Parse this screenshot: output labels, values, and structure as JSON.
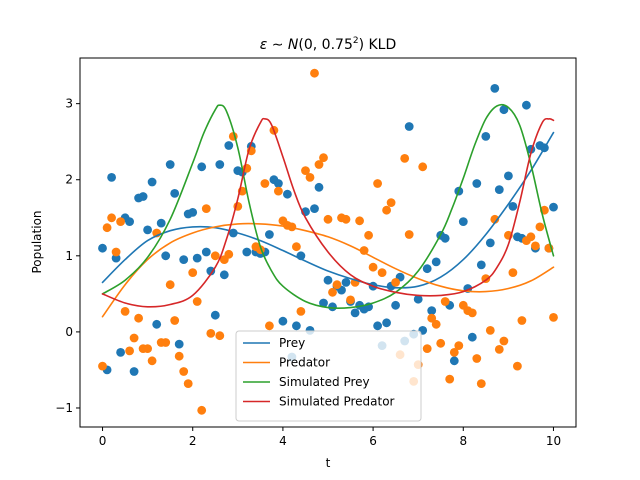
{
  "chart_data": {
    "type": "scatter",
    "title_parts": {
      "lead": "ε ∼ ",
      "func": "N",
      "args": "(0, 0.75",
      "sup": "2",
      "tail": ") KLD"
    },
    "xlabel": "t",
    "ylabel": "Population",
    "xlim": [
      -0.5,
      10.5
    ],
    "ylim": [
      -1.25,
      3.6
    ],
    "xticks": [
      0,
      2,
      4,
      6,
      8,
      10
    ],
    "yticks": [
      -1,
      0,
      1,
      2,
      3
    ],
    "legend_position": "lower center",
    "colors": {
      "prey": "#1f77b4",
      "predator": "#ff7f0e",
      "sim_prey": "#2ca02c",
      "sim_predator": "#d62728"
    },
    "series": [
      {
        "name": "Prey",
        "kind": "line",
        "color": "#1f77b4",
        "x": [
          0,
          0.5,
          1,
          1.5,
          2,
          2.5,
          3,
          3.5,
          4,
          4.5,
          5,
          5.5,
          6,
          6.5,
          7,
          7.5,
          8,
          8.5,
          9,
          9.5,
          10
        ],
        "y": [
          0.65,
          0.95,
          1.2,
          1.33,
          1.38,
          1.37,
          1.3,
          1.2,
          1.07,
          0.93,
          0.8,
          0.7,
          0.62,
          0.58,
          0.6,
          0.72,
          0.95,
          1.28,
          1.68,
          2.12,
          2.62
        ]
      },
      {
        "name": "Predator",
        "kind": "line",
        "color": "#ff7f0e",
        "x": [
          0,
          0.5,
          1,
          1.5,
          2,
          2.5,
          3,
          3.5,
          4,
          4.5,
          5,
          5.5,
          6,
          6.5,
          7,
          7.5,
          8,
          8.5,
          9,
          9.5,
          10
        ],
        "y": [
          0.2,
          0.62,
          0.95,
          1.17,
          1.3,
          1.38,
          1.42,
          1.42,
          1.39,
          1.33,
          1.25,
          1.13,
          0.98,
          0.83,
          0.7,
          0.6,
          0.54,
          0.53,
          0.57,
          0.67,
          0.85
        ]
      },
      {
        "name": "Simulated Prey",
        "kind": "line",
        "color": "#2ca02c",
        "x": [
          0,
          0.5,
          1,
          1.5,
          2,
          2.25,
          2.5,
          2.6,
          2.75,
          3,
          3.25,
          3.5,
          3.75,
          4,
          4.5,
          5,
          5.5,
          6,
          6.5,
          7,
          7.5,
          7.75,
          8,
          8.25,
          8.5,
          8.75,
          9,
          9.25,
          9.5,
          9.75,
          10
        ],
        "y": [
          0.5,
          0.68,
          0.98,
          1.48,
          2.22,
          2.62,
          2.92,
          2.98,
          2.9,
          2.42,
          1.7,
          1.12,
          0.8,
          0.6,
          0.4,
          0.32,
          0.32,
          0.38,
          0.52,
          0.8,
          1.28,
          1.62,
          2.02,
          2.45,
          2.8,
          2.97,
          2.95,
          2.72,
          2.2,
          1.55,
          1.0
        ]
      },
      {
        "name": "Simulated Predator",
        "kind": "line",
        "color": "#d62728",
        "x": [
          0,
          0.5,
          1,
          1.5,
          2,
          2.5,
          2.75,
          3,
          3.25,
          3.5,
          3.6,
          3.75,
          4,
          4.25,
          4.5,
          5,
          5.5,
          6,
          6.5,
          7,
          7.5,
          8,
          8.5,
          8.75,
          9,
          9.25,
          9.5,
          9.75,
          9.9,
          10
        ],
        "y": [
          0.5,
          0.38,
          0.33,
          0.36,
          0.48,
          0.85,
          1.22,
          1.75,
          2.4,
          2.75,
          2.8,
          2.72,
          2.3,
          1.85,
          1.5,
          1.05,
          0.75,
          0.6,
          0.52,
          0.48,
          0.48,
          0.53,
          0.68,
          0.85,
          1.15,
          1.7,
          2.35,
          2.75,
          2.8,
          2.78
        ]
      },
      {
        "name": "Prey",
        "kind": "points",
        "color": "#1f77b4",
        "x": [
          0,
          0.1,
          0.2,
          0.3,
          0.4,
          0.5,
          0.6,
          0.7,
          0.8,
          0.9,
          1,
          1.1,
          1.2,
          1.3,
          1.4,
          1.5,
          1.6,
          1.7,
          1.8,
          1.9,
          2,
          2.1,
          2.2,
          2.3,
          2.4,
          2.5,
          2.6,
          2.7,
          2.8,
          2.9,
          3,
          3.1,
          3.2,
          3.3,
          3.4,
          3.5,
          3.6,
          3.7,
          3.8,
          3.9,
          4,
          4.1,
          4.2,
          4.3,
          4.4,
          4.5,
          4.6,
          4.7,
          4.8,
          4.9,
          5,
          5.1,
          5.2,
          5.3,
          5.4,
          5.5,
          5.6,
          5.7,
          5.8,
          5.9,
          6,
          6.1,
          6.2,
          6.3,
          6.4,
          6.5,
          6.6,
          6.7,
          6.8,
          6.9,
          7,
          7.1,
          7.2,
          7.3,
          7.4,
          7.5,
          7.6,
          7.7,
          7.8,
          7.9,
          8,
          8.1,
          8.2,
          8.3,
          8.4,
          8.5,
          8.6,
          8.7,
          8.8,
          8.9,
          9,
          9.1,
          9.2,
          9.3,
          9.4,
          9.5,
          9.6,
          9.7,
          9.8,
          9.9,
          10
        ],
        "y": [
          1.1,
          -0.5,
          2.03,
          0.97,
          -0.27,
          1.5,
          1.45,
          -0.52,
          1.76,
          1.78,
          1.34,
          1.97,
          0.1,
          1.43,
          1.0,
          2.2,
          1.82,
          -0.16,
          0.95,
          1.55,
          1.57,
          0.97,
          2.17,
          1.05,
          0.8,
          0.22,
          2.2,
          0.75,
          2.45,
          1.3,
          2.12,
          2.1,
          1.05,
          2.44,
          1.05,
          1.03,
          1.05,
          1.28,
          2.0,
          1.95,
          0.14,
          1.81,
          -0.33,
          0.08,
          1.0,
          1.58,
          0.02,
          1.62,
          1.9,
          0.38,
          0.68,
          0.33,
          0.6,
          0.55,
          0.65,
          0.4,
          0.25,
          0.35,
          0.3,
          0.33,
          0.6,
          0.08,
          -0.18,
          0.12,
          0.6,
          0.35,
          0.72,
          -0.12,
          2.7,
          -0.03,
          0.43,
          0.02,
          0.83,
          0.28,
          0.92,
          1.27,
          1.23,
          0.35,
          -0.38,
          1.85,
          1.45,
          0.57,
          -0.07,
          1.95,
          0.88,
          2.57,
          1.17,
          3.2,
          1.87,
          2.92,
          2.05,
          1.65,
          1.25,
          1.23,
          2.98,
          2.4,
          1.1,
          2.45,
          2.42,
          1.1,
          1.64
        ]
      },
      {
        "name": "Predator",
        "kind": "points",
        "color": "#ff7f0e",
        "x": [
          0,
          0.1,
          0.2,
          0.3,
          0.4,
          0.5,
          0.6,
          0.7,
          0.8,
          0.9,
          1,
          1.1,
          1.2,
          1.3,
          1.4,
          1.5,
          1.6,
          1.7,
          1.8,
          1.9,
          2,
          2.1,
          2.2,
          2.3,
          2.4,
          2.5,
          2.6,
          2.7,
          2.8,
          2.9,
          3,
          3.1,
          3.2,
          3.3,
          3.4,
          3.5,
          3.6,
          3.7,
          3.8,
          3.9,
          4,
          4.1,
          4.2,
          4.3,
          4.4,
          4.5,
          4.6,
          4.7,
          4.8,
          4.9,
          5,
          5.1,
          5.2,
          5.3,
          5.4,
          5.5,
          5.6,
          5.7,
          5.8,
          5.9,
          6,
          6.1,
          6.2,
          6.3,
          6.4,
          6.5,
          6.6,
          6.7,
          6.8,
          6.9,
          7,
          7.1,
          7.2,
          7.3,
          7.4,
          7.5,
          7.6,
          7.7,
          7.8,
          7.9,
          8,
          8.1,
          8.2,
          8.3,
          8.4,
          8.5,
          8.6,
          8.7,
          8.8,
          8.9,
          9,
          9.1,
          9.2,
          9.3,
          9.4,
          9.5,
          9.6,
          9.7,
          9.8,
          9.9,
          10
        ],
        "y": [
          -0.45,
          1.37,
          1.5,
          1.05,
          1.45,
          0.27,
          -0.25,
          -0.08,
          0.18,
          -0.22,
          -0.22,
          -0.38,
          1.3,
          -0.14,
          -0.14,
          0.62,
          0.15,
          -0.32,
          -0.52,
          -0.68,
          0.78,
          0.4,
          -1.03,
          1.62,
          -0.02,
          1.0,
          -0.05,
          0.95,
          1.02,
          2.57,
          1.65,
          1.85,
          2.15,
          2.38,
          1.12,
          1.08,
          1.95,
          0.08,
          2.65,
          1.85,
          1.46,
          1.4,
          1.38,
          1.12,
          0.27,
          2.12,
          2.03,
          3.4,
          2.2,
          2.29,
          1.48,
          0.52,
          0.62,
          1.5,
          1.48,
          0.42,
          0.65,
          1.46,
          1.07,
          1.27,
          0.85,
          1.95,
          0.78,
          1.6,
          1.7,
          0.65,
          -0.3,
          2.28,
          1.28,
          -0.65,
          -0.43,
          2.17,
          -0.22,
          0.18,
          0.1,
          -0.15,
          0.4,
          -0.62,
          -0.27,
          -0.18,
          0.35,
          0.28,
          0.25,
          -0.35,
          -0.68,
          0.7,
          0.02,
          1.48,
          -0.23,
          -0.12,
          1.27,
          0.78,
          -0.45,
          0.15,
          1.2,
          1.25,
          1.13,
          1.38,
          1.6,
          1.1,
          0.19
        ]
      }
    ]
  }
}
